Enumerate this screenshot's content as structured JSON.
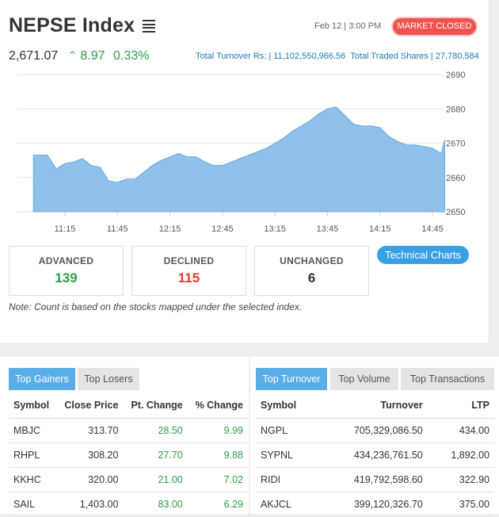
{
  "header": {
    "title": "NEPSE Index",
    "datetime": "Feb 12 | 3:00 PM",
    "status": "MARKET CLOSED"
  },
  "index": {
    "value": "2,671.07",
    "change_arrow": "^",
    "change": "8.97",
    "percent": "0.33%",
    "turnover_text": "Total Turnover Rs: | 11,102,550,966.56",
    "shares_text": "Total Traded Shares | 27,780,584"
  },
  "colors": {
    "accent": "#3aa0e6",
    "up": "#2e9e47",
    "down": "#e53935",
    "closed": "#ef5350",
    "area": "#8fc1ea"
  },
  "chart_data": {
    "type": "area",
    "x_ticks": [
      "11:15",
      "11:45",
      "12:15",
      "12:45",
      "13:15",
      "13:45",
      "14:15",
      "14:45"
    ],
    "y_ticks": [
      "2690",
      "2680",
      "2670",
      "2660",
      "2650"
    ],
    "ylim": [
      2650,
      2690
    ],
    "grid": true,
    "x": [
      "10:57",
      "11:05",
      "11:10",
      "11:15",
      "11:20",
      "11:25",
      "11:30",
      "11:35",
      "11:40",
      "11:45",
      "11:50",
      "11:55",
      "12:00",
      "12:05",
      "12:10",
      "12:15",
      "12:20",
      "12:25",
      "12:30",
      "12:35",
      "12:40",
      "12:45",
      "12:50",
      "12:55",
      "13:00",
      "13:05",
      "13:10",
      "13:15",
      "13:20",
      "13:25",
      "13:30",
      "13:35",
      "13:40",
      "13:45",
      "13:50",
      "13:55",
      "14:00",
      "14:05",
      "14:10",
      "14:15",
      "14:20",
      "14:25",
      "14:30",
      "14:35",
      "14:40",
      "14:45",
      "14:50",
      "14:52"
    ],
    "values": [
      2666.5,
      2666.5,
      2662.5,
      2664.0,
      2664.5,
      2665.5,
      2663.5,
      2663.0,
      2659.0,
      2658.5,
      2659.5,
      2659.5,
      2661.5,
      2663.5,
      2665.0,
      2666.0,
      2667.0,
      2666.0,
      2666.0,
      2664.5,
      2663.5,
      2663.5,
      2664.5,
      2665.5,
      2666.5,
      2667.5,
      2668.5,
      2670.0,
      2671.5,
      2673.5,
      2675.0,
      2676.5,
      2678.5,
      2680.0,
      2680.5,
      2678.0,
      2675.5,
      2675.0,
      2675.0,
      2674.5,
      2672.0,
      2670.5,
      2669.5,
      2669.5,
      2669.0,
      2668.5,
      2667.0,
      2671.0
    ]
  },
  "summary": {
    "advanced_label": "ADVANCED",
    "advanced_value": "139",
    "declined_label": "DECLINED",
    "declined_value": "115",
    "unchanged_label": "UNCHANGED",
    "unchanged_value": "6"
  },
  "tech_button": "Technical Charts",
  "note": "Note: Count is based on the stocks mapped under the selected index.",
  "left_panel": {
    "tabs": [
      "Top Gainers",
      "Top Losers"
    ],
    "headers": [
      "Symbol",
      "Close Price",
      "Pt. Change",
      "% Change"
    ],
    "rows": [
      [
        "MBJC",
        "313.70",
        "28.50",
        "9.99"
      ],
      [
        "RHPL",
        "308.20",
        "27.70",
        "9.88"
      ],
      [
        "KKHC",
        "320.00",
        "21.00",
        "7.02"
      ],
      [
        "SAIL",
        "1,403.00",
        "83.00",
        "6.29"
      ]
    ]
  },
  "right_panel": {
    "tabs": [
      "Top Turnover",
      "Top Volume",
      "Top Transactions"
    ],
    "headers": [
      "Symbol",
      "Turnover",
      "LTP"
    ],
    "rows": [
      [
        "NGPL",
        "705,329,086.50",
        "434.00"
      ],
      [
        "SYPNL",
        "434,236,761.50",
        "1,892.00"
      ],
      [
        "RIDI",
        "419,792,598.60",
        "322.90"
      ],
      [
        "AKJCL",
        "399,120,326.70",
        "375.00"
      ]
    ]
  }
}
